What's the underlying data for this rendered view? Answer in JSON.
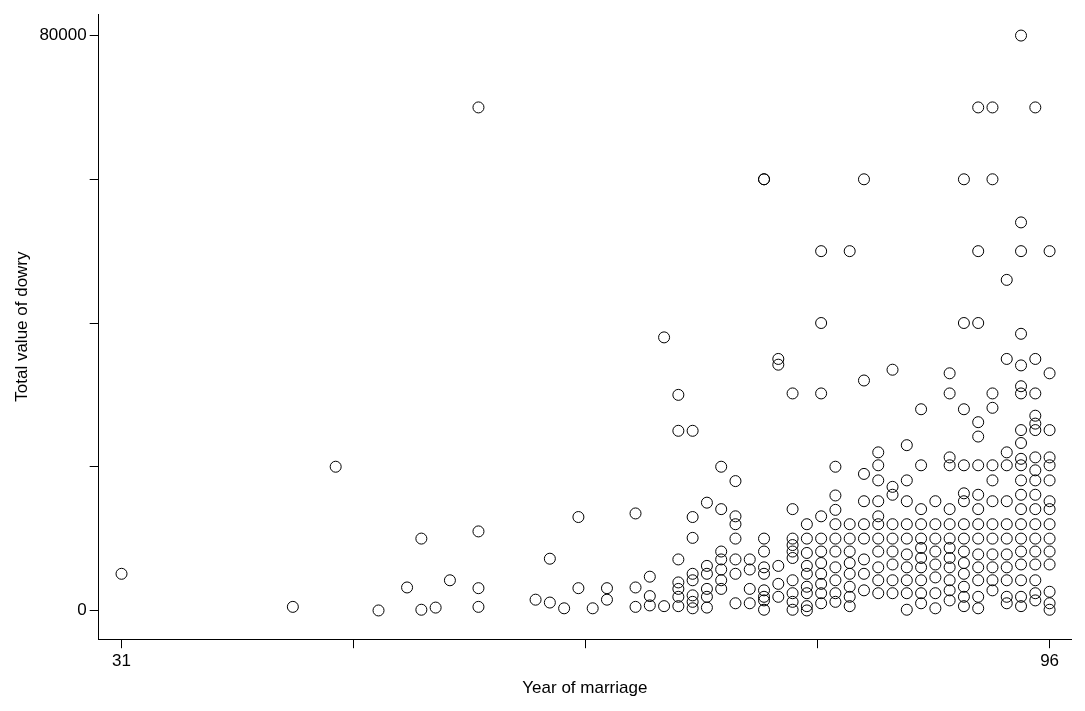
{
  "chart_data": {
    "type": "scatter",
    "xlabel": "Year of marriage",
    "ylabel": "Total value of dowry",
    "marker": "circle",
    "grid": false,
    "legend": false,
    "xlim": [
      29.4,
      97.5
    ],
    "ylim": [
      -4000,
      83000
    ],
    "xticks": [
      31,
      {
        "value": 47.25,
        "label": null
      },
      {
        "value": 63.5,
        "label": null
      },
      {
        "value": 79.75,
        "label": null
      },
      96
    ],
    "yticks": [
      0,
      {
        "value": 20000,
        "label": null
      },
      {
        "value": 40000,
        "label": null
      },
      {
        "value": 60000,
        "label": null
      },
      80000
    ],
    "series": [
      {
        "color": "#000000",
        "x": [
          31,
          43,
          46,
          49,
          51,
          52,
          52,
          53,
          54,
          56,
          56,
          56,
          56,
          60,
          61,
          61,
          62,
          63,
          63,
          64,
          65,
          65,
          67,
          67,
          67,
          68,
          68,
          68,
          69,
          69,
          70,
          70,
          70,
          70,
          70,
          70,
          70,
          71,
          71,
          71,
          71,
          71,
          71,
          71,
          71,
          72,
          72,
          72,
          72,
          72,
          72,
          73,
          73,
          73,
          73,
          73,
          73,
          73,
          74,
          74,
          74,
          74,
          74,
          74,
          74,
          75,
          75,
          75,
          75,
          76,
          76,
          76,
          76,
          76,
          76,
          76,
          76,
          76,
          76,
          77,
          77,
          77,
          77,
          77,
          78,
          78,
          78,
          78,
          78,
          78,
          78,
          78,
          78,
          78,
          79,
          79,
          79,
          79,
          79,
          79,
          79,
          79,
          79,
          80,
          80,
          80,
          80,
          80,
          80,
          80,
          80,
          80,
          80,
          80,
          81,
          81,
          81,
          81,
          81,
          81,
          81,
          81,
          81,
          81,
          82,
          82,
          82,
          82,
          82,
          82,
          82,
          82,
          82,
          83,
          83,
          83,
          83,
          83,
          83,
          83,
          83,
          83,
          84,
          84,
          84,
          84,
          84,
          84,
          84,
          84,
          84,
          84,
          84,
          85,
          85,
          85,
          85,
          85,
          85,
          85,
          85,
          85,
          86,
          86,
          86,
          86,
          86,
          86,
          86,
          86,
          86,
          86,
          87,
          87,
          87,
          87,
          87,
          87,
          87,
          87,
          87,
          87,
          87,
          88,
          88,
          88,
          88,
          88,
          88,
          88,
          88,
          89,
          89,
          89,
          89,
          89,
          89,
          89,
          89,
          89,
          89,
          89,
          89,
          89,
          90,
          90,
          90,
          90,
          90,
          90,
          90,
          90,
          90,
          90,
          90,
          90,
          90,
          90,
          91,
          91,
          91,
          91,
          91,
          91,
          91,
          91,
          91,
          91,
          91,
          91,
          91,
          91,
          91,
          92,
          92,
          92,
          92,
          92,
          92,
          92,
          92,
          92,
          92,
          92,
          92,
          92,
          93,
          93,
          93,
          93,
          93,
          93,
          93,
          93,
          93,
          93,
          93,
          93,
          94,
          94,
          94,
          94,
          94,
          94,
          94,
          94,
          94,
          94,
          94,
          94,
          94,
          94,
          94,
          94,
          94,
          94,
          94,
          94,
          94,
          95,
          95,
          95,
          95,
          95,
          95,
          95,
          95,
          95,
          95,
          95,
          95,
          95,
          95,
          95,
          95,
          95,
          95,
          96,
          96,
          96,
          96,
          96,
          96,
          96,
          96,
          96,
          96,
          96,
          96,
          96,
          96,
          96
        ],
        "values": [
          5100,
          500,
          20000,
          0,
          3200,
          100,
          10000,
          400,
          4200,
          70000,
          11000,
          3100,
          500,
          1500,
          1100,
          7200,
          300,
          3100,
          13000,
          300,
          3100,
          1500,
          13500,
          3200,
          500,
          4700,
          2000,
          700,
          38000,
          600,
          30000,
          25000,
          7100,
          3900,
          3000,
          1900,
          600,
          25000,
          13000,
          10100,
          5100,
          4200,
          2100,
          1200,
          300,
          15000,
          6200,
          5100,
          3000,
          1900,
          400,
          20000,
          14100,
          8200,
          7100,
          5700,
          4200,
          3000,
          18000,
          13100,
          12000,
          10000,
          7100,
          5100,
          1000,
          7100,
          5700,
          3000,
          1000,
          60000,
          60000,
          10000,
          8200,
          6000,
          5100,
          2800,
          1900,
          1400,
          100,
          35000,
          34200,
          6200,
          3700,
          1900,
          30200,
          14100,
          10000,
          9100,
          8200,
          7300,
          4200,
          2400,
          1200,
          100,
          12000,
          10000,
          8000,
          6200,
          5100,
          3300,
          2400,
          600,
          0,
          50000,
          40000,
          30200,
          13100,
          10000,
          8200,
          6600,
          5100,
          3700,
          2400,
          1000,
          20000,
          16000,
          14000,
          12000,
          10000,
          8200,
          6000,
          4200,
          2400,
          1200,
          50000,
          12000,
          10000,
          8200,
          6600,
          5100,
          3300,
          1900,
          600,
          60000,
          32000,
          19000,
          15200,
          12000,
          10000,
          7100,
          5100,
          2800,
          22000,
          20200,
          18100,
          15200,
          13100,
          12000,
          10000,
          8200,
          6000,
          4200,
          2400,
          33500,
          17200,
          16100,
          12000,
          10000,
          8200,
          6400,
          4200,
          2400,
          23000,
          18100,
          15200,
          12000,
          10000,
          7800,
          6000,
          4200,
          2400,
          100,
          28000,
          20200,
          14100,
          12000,
          10000,
          8700,
          7300,
          6000,
          4200,
          2400,
          1000,
          15200,
          12000,
          10000,
          8200,
          6400,
          4600,
          2400,
          300,
          33000,
          30200,
          21300,
          20200,
          14100,
          12000,
          10000,
          8700,
          7300,
          6000,
          4200,
          2800,
          1400,
          60000,
          40000,
          28000,
          20200,
          16300,
          15200,
          12000,
          10000,
          8200,
          6600,
          5100,
          3300,
          1900,
          600,
          70000,
          50000,
          40000,
          26200,
          24200,
          20200,
          16100,
          14100,
          12000,
          10000,
          7800,
          6000,
          4200,
          1900,
          300,
          70000,
          60000,
          30200,
          28200,
          20200,
          18100,
          15200,
          12000,
          10000,
          7800,
          6000,
          4200,
          2800,
          46000,
          35000,
          22000,
          20200,
          15200,
          12000,
          10000,
          7800,
          6000,
          4200,
          1900,
          1000,
          80000,
          54000,
          50000,
          38500,
          34100,
          31200,
          30200,
          25100,
          23300,
          21100,
          20200,
          18100,
          16100,
          14100,
          12000,
          10000,
          8200,
          6400,
          4200,
          1900,
          600,
          70000,
          35000,
          30200,
          27100,
          26000,
          25100,
          21300,
          19500,
          18100,
          16100,
          14100,
          12000,
          10000,
          8200,
          6400,
          4200,
          2400,
          1400,
          50000,
          33000,
          25100,
          21300,
          20200,
          18100,
          15200,
          14100,
          12000,
          10000,
          8200,
          6400,
          2600,
          1000,
          100
        ]
      }
    ]
  }
}
